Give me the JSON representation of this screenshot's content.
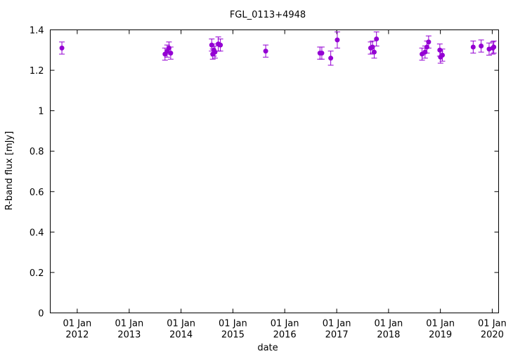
{
  "chart_data": {
    "type": "scatter",
    "title": "FGL_0113+4948",
    "xlabel": "date",
    "ylabel": "R-band flux [mJy]",
    "ylim": [
      0,
      1.4
    ],
    "xlim": [
      "2011-06-25",
      "2020-02-15"
    ],
    "yticks": [
      0,
      0.2,
      0.4,
      0.6,
      0.8,
      1,
      1.2,
      1.4
    ],
    "ytick_labels": [
      "0",
      "0.2",
      "0.4",
      "0.6",
      "0.8",
      "1",
      "1.2",
      "1.4"
    ],
    "xticks": [
      {
        "date": "2012-01-01",
        "line1": "01 Jan",
        "line2": "2012"
      },
      {
        "date": "2013-01-01",
        "line1": "01 Jan",
        "line2": "2013"
      },
      {
        "date": "2014-01-01",
        "line1": "01 Jan",
        "line2": "2014"
      },
      {
        "date": "2015-01-01",
        "line1": "01 Jan",
        "line2": "2015"
      },
      {
        "date": "2016-01-01",
        "line1": "01 Jan",
        "line2": "2016"
      },
      {
        "date": "2017-01-01",
        "line1": "01 Jan",
        "line2": "2017"
      },
      {
        "date": "2018-01-01",
        "line1": "01 Jan",
        "line2": "2018"
      },
      {
        "date": "2019-01-01",
        "line1": "01 Jan",
        "line2": "2019"
      },
      {
        "date": "2020-01-01",
        "line1": "01 Jan",
        "line2": "2020"
      }
    ],
    "grid": false,
    "marker_color": "#9400d3",
    "points": [
      {
        "date": "2011-09-15",
        "y": 1.31,
        "err": 0.03
      },
      {
        "date": "2013-09-10",
        "y": 1.28,
        "err": 0.03
      },
      {
        "date": "2013-09-25",
        "y": 1.295,
        "err": 0.03
      },
      {
        "date": "2013-10-08",
        "y": 1.31,
        "err": 0.03
      },
      {
        "date": "2013-10-20",
        "y": 1.285,
        "err": 0.03
      },
      {
        "date": "2014-08-05",
        "y": 1.325,
        "err": 0.03
      },
      {
        "date": "2014-08-12",
        "y": 1.28,
        "err": 0.025
      },
      {
        "date": "2014-08-20",
        "y": 1.3,
        "err": 0.03
      },
      {
        "date": "2014-08-28",
        "y": 1.29,
        "err": 0.03
      },
      {
        "date": "2014-09-20",
        "y": 1.33,
        "err": 0.035
      },
      {
        "date": "2014-10-05",
        "y": 1.325,
        "err": 0.03
      },
      {
        "date": "2015-08-20",
        "y": 1.295,
        "err": 0.03
      },
      {
        "date": "2016-09-05",
        "y": 1.285,
        "err": 0.03
      },
      {
        "date": "2016-09-18",
        "y": 1.285,
        "err": 0.03
      },
      {
        "date": "2016-11-20",
        "y": 1.26,
        "err": 0.035
      },
      {
        "date": "2017-01-05",
        "y": 1.35,
        "err": 0.04
      },
      {
        "date": "2017-08-28",
        "y": 1.31,
        "err": 0.03
      },
      {
        "date": "2017-09-10",
        "y": 1.315,
        "err": 0.03
      },
      {
        "date": "2017-09-22",
        "y": 1.29,
        "err": 0.03
      },
      {
        "date": "2017-10-08",
        "y": 1.355,
        "err": 0.035
      },
      {
        "date": "2018-08-25",
        "y": 1.28,
        "err": 0.03
      },
      {
        "date": "2018-09-15",
        "y": 1.29,
        "err": 0.03
      },
      {
        "date": "2018-09-28",
        "y": 1.315,
        "err": 0.03
      },
      {
        "date": "2018-10-10",
        "y": 1.34,
        "err": 0.03
      },
      {
        "date": "2018-12-28",
        "y": 1.3,
        "err": 0.03
      },
      {
        "date": "2019-01-02",
        "y": 1.265,
        "err": 0.03
      },
      {
        "date": "2019-01-15",
        "y": 1.275,
        "err": 0.03
      },
      {
        "date": "2019-08-20",
        "y": 1.315,
        "err": 0.03
      },
      {
        "date": "2019-10-15",
        "y": 1.32,
        "err": 0.03
      },
      {
        "date": "2019-12-10",
        "y": 1.305,
        "err": 0.03
      },
      {
        "date": "2020-01-05",
        "y": 1.31,
        "err": 0.03
      },
      {
        "date": "2020-01-12",
        "y": 1.315,
        "err": 0.03
      }
    ]
  }
}
